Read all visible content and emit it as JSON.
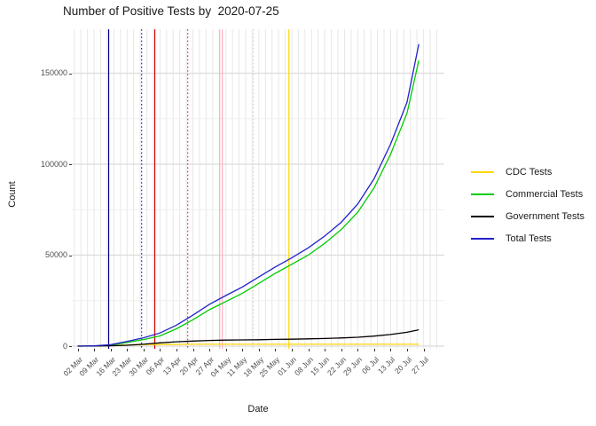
{
  "title": "Number of Positive Tests by  2020-07-25",
  "axes": {
    "x_label": "Date",
    "y_label": "Count"
  },
  "legend": {
    "items": [
      {
        "label": "CDC Tests",
        "color": "#ffd700"
      },
      {
        "label": "Commercial Tests",
        "color": "#00cc00"
      },
      {
        "label": "Government Tests",
        "color": "#000000"
      },
      {
        "label": "Total Tests",
        "color": "#2222cc"
      }
    ]
  },
  "chart_data": {
    "type": "line",
    "title": "Number of Positive Tests by  2020-07-25",
    "xlabel": "Date",
    "ylabel": "Count",
    "x_tick_labels": [
      "02 Mar",
      "09 Mar",
      "16 Mar",
      "23 Mar",
      "30 Mar",
      "06 Apr",
      "13 Apr",
      "20 Apr",
      "27 Apr",
      "04 May",
      "11 May",
      "18 May",
      "25 May",
      "01 Jun",
      "08 Jun",
      "15 Jun",
      "22 Jun",
      "29 Jun",
      "06 Jul",
      "13 Jul",
      "20 Jul",
      "27 Jul"
    ],
    "y_ticks": [
      0,
      50000,
      100000,
      150000
    ],
    "y_minor_ticks": [
      25000,
      75000,
      125000,
      175000
    ],
    "ylim": [
      0,
      174000
    ],
    "x_span_days": 147,
    "grid": true,
    "legend_position": "right",
    "x_days": [
      0,
      7,
      14,
      21,
      28,
      35,
      42,
      49,
      56,
      63,
      70,
      77,
      84,
      91,
      98,
      105,
      112,
      119,
      126,
      133,
      140,
      145
    ],
    "series": [
      {
        "name": "CDC Tests",
        "color": "#ffd700",
        "values": [
          0,
          50,
          300,
          600,
          800,
          900,
          950,
          1000,
          1000,
          1000,
          1000,
          1000,
          1000,
          1000,
          1000,
          1000,
          1000,
          1000,
          1000,
          1000,
          1000,
          1000
        ]
      },
      {
        "name": "Commercial Tests",
        "color": "#00cc00",
        "values": [
          0,
          150,
          500,
          2000,
          3600,
          5600,
          9500,
          14500,
          20000,
          24500,
          29000,
          34500,
          40000,
          45000,
          50000,
          56500,
          64000,
          73500,
          87000,
          105500,
          128000,
          157000
        ]
      },
      {
        "name": "Government Tests",
        "color": "#000000",
        "values": [
          0,
          50,
          200,
          500,
          1000,
          1800,
          2400,
          2800,
          3100,
          3300,
          3400,
          3500,
          3700,
          3800,
          4000,
          4200,
          4500,
          4900,
          5500,
          6400,
          7600,
          9000
        ]
      },
      {
        "name": "Total Tests",
        "color": "#2222cc",
        "values": [
          0,
          200,
          800,
          2600,
          4600,
          7200,
          11500,
          17000,
          23000,
          27800,
          32500,
          38000,
          43500,
          48500,
          54000,
          60500,
          68000,
          78000,
          92000,
          111000,
          134000,
          166000
        ]
      }
    ],
    "vlines": [
      {
        "x_day": 13.2,
        "color": "#00008b",
        "style": "solid"
      },
      {
        "x_day": 27.2,
        "color": "#2020c0",
        "style": "dotted"
      },
      {
        "x_day": 32.8,
        "color": "#d10000",
        "style": "solid"
      },
      {
        "x_day": 46.8,
        "color": "#e03030",
        "style": "dotted"
      },
      {
        "x_day": 60.4,
        "color": "#ffaec0",
        "style": "solid"
      },
      {
        "x_day": 61.5,
        "color": "#ffaec0",
        "style": "solid"
      },
      {
        "x_day": 74.7,
        "color": "#ffc2cf",
        "style": "dotted"
      },
      {
        "x_day": 89.8,
        "color": "#ffd700",
        "style": "solid"
      }
    ]
  }
}
